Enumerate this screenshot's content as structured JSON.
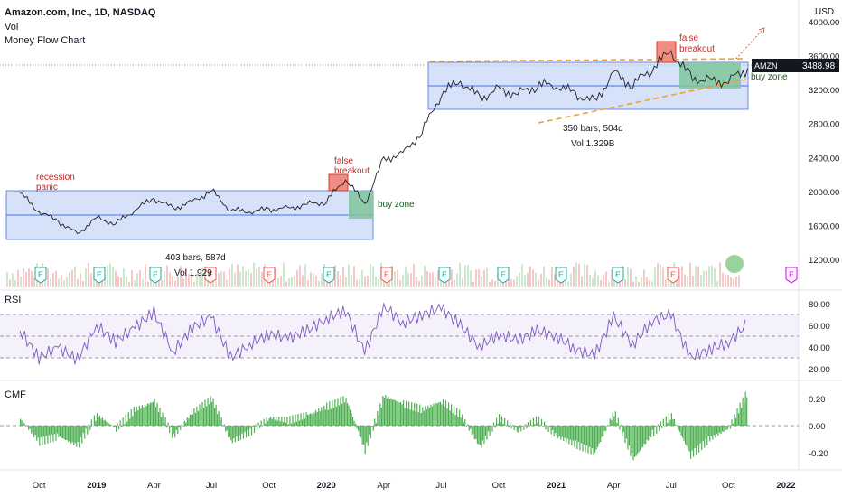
{
  "header": {
    "title": "Amazon.com, Inc., 1D, NASDAQ",
    "vol_label": "Vol",
    "indicator_label": "Money Flow Chart"
  },
  "currency": "USD",
  "ticker": {
    "symbol": "AMZN",
    "last_price": "3488.98"
  },
  "colors": {
    "price_line": "#1f1f1f",
    "range_fill": "#b5c8f5",
    "range_line": "#4a6ee0",
    "buy_fill": "#7fc59a",
    "breakout_fill": "#f28b82",
    "breakout_line": "#d23f31",
    "trend_dash": "#f0a030",
    "rsi_line": "#7e57c2",
    "cmf_bar": "#4caf50",
    "annotation_red": "#c62828",
    "annotation_green": "#1b5e20",
    "earnings_green": "#26a69a",
    "earnings_red": "#ef5350",
    "earnings_pink": "#d500f9"
  },
  "annotations": {
    "recession_panic": [
      "recession",
      "panic"
    ],
    "false_breakout": [
      "false",
      "breakout"
    ],
    "buy_zone": "buy zone",
    "range1_bars": "403 bars, 587d",
    "range1_vol": "Vol 1.929",
    "range2_bars": "350 bars, 504d",
    "range2_vol": "Vol 1.329B",
    "earnings_marker": "E"
  },
  "panes": {
    "rsi_label": "RSI",
    "cmf_label": "CMF"
  },
  "chart_data": [
    {
      "type": "line",
      "pane": "price",
      "x_ticks": [
        "Oct",
        "2019",
        "Apr",
        "Jul",
        "Oct",
        "2020",
        "Apr",
        "Jul",
        "Oct",
        "2021",
        "Apr",
        "Jul",
        "Oct",
        "2022"
      ],
      "y_ticks": [
        "1200.00",
        "1600.00",
        "2000.00",
        "2400.00",
        "2800.00",
        "3200.00",
        "3600.00",
        "4000.00"
      ],
      "ylim": [
        1000,
        4100
      ],
      "x": [
        "2018-09",
        "2018-10",
        "2018-11",
        "2018-12",
        "2019-01",
        "2019-02",
        "2019-03",
        "2019-04",
        "2019-05",
        "2019-06",
        "2019-07",
        "2019-08",
        "2019-09",
        "2019-10",
        "2019-11",
        "2019-12",
        "2020-01",
        "2020-02",
        "2020-03",
        "2020-04",
        "2020-05",
        "2020-06",
        "2020-07",
        "2020-08",
        "2020-09",
        "2020-10",
        "2020-11",
        "2020-12",
        "2021-01",
        "2021-02",
        "2021-03",
        "2021-04",
        "2021-05",
        "2021-06",
        "2021-07",
        "2021-08",
        "2021-09",
        "2021-10",
        "2021-11"
      ],
      "values": [
        1980,
        1760,
        1650,
        1500,
        1690,
        1620,
        1780,
        1920,
        1800,
        1880,
        2010,
        1780,
        1760,
        1790,
        1800,
        1850,
        1880,
        2150,
        1850,
        2380,
        2450,
        2700,
        3150,
        3300,
        3100,
        3200,
        3150,
        3250,
        3250,
        3150,
        3050,
        3400,
        3250,
        3450,
        3650,
        3350,
        3300,
        3300,
        3450
      ]
    },
    {
      "type": "line",
      "pane": "rsi",
      "y_ticks": [
        "20.00",
        "40.00",
        "60.00",
        "80.00"
      ],
      "ylim": [
        15,
        85
      ],
      "bands": [
        30,
        50,
        70
      ],
      "x": [
        "2018-09",
        "2018-10",
        "2018-11",
        "2018-12",
        "2019-01",
        "2019-02",
        "2019-03",
        "2019-04",
        "2019-05",
        "2019-06",
        "2019-07",
        "2019-08",
        "2019-09",
        "2019-10",
        "2019-11",
        "2019-12",
        "2020-01",
        "2020-02",
        "2020-03",
        "2020-04",
        "2020-05",
        "2020-06",
        "2020-07",
        "2020-08",
        "2020-09",
        "2020-10",
        "2020-11",
        "2020-12",
        "2021-01",
        "2021-02",
        "2021-03",
        "2021-04",
        "2021-05",
        "2021-06",
        "2021-07",
        "2021-08",
        "2021-09",
        "2021-10",
        "2021-11"
      ],
      "values": [
        55,
        30,
        40,
        28,
        60,
        45,
        58,
        72,
        35,
        58,
        68,
        30,
        42,
        52,
        48,
        55,
        66,
        74,
        35,
        78,
        62,
        70,
        76,
        60,
        40,
        52,
        46,
        55,
        50,
        38,
        32,
        68,
        42,
        64,
        70,
        30,
        38,
        44,
        62
      ]
    },
    {
      "type": "bar",
      "pane": "cmf",
      "y_ticks": [
        "-0.20",
        "0.00",
        "0.20"
      ],
      "ylim": [
        -0.32,
        0.32
      ],
      "x": [
        "2018-09",
        "2018-10",
        "2018-11",
        "2018-12",
        "2019-01",
        "2019-02",
        "2019-03",
        "2019-04",
        "2019-05",
        "2019-06",
        "2019-07",
        "2019-08",
        "2019-09",
        "2019-10",
        "2019-11",
        "2019-12",
        "2020-01",
        "2020-02",
        "2020-03",
        "2020-04",
        "2020-05",
        "2020-06",
        "2020-07",
        "2020-08",
        "2020-09",
        "2020-10",
        "2020-11",
        "2020-12",
        "2021-01",
        "2021-02",
        "2021-03",
        "2021-04",
        "2021-05",
        "2021-06",
        "2021-07",
        "2021-08",
        "2021-09",
        "2021-10",
        "2021-11"
      ],
      "values": [
        0.05,
        -0.12,
        -0.08,
        -0.15,
        0.08,
        -0.02,
        0.12,
        0.18,
        -0.08,
        0.1,
        0.2,
        -0.12,
        -0.05,
        0.06,
        0.04,
        0.08,
        0.14,
        0.2,
        -0.18,
        0.22,
        0.16,
        0.12,
        0.18,
        0.08,
        -0.16,
        0.06,
        -0.04,
        0.05,
        -0.08,
        -0.14,
        -0.2,
        0.1,
        -0.25,
        -0.06,
        0.08,
        -0.22,
        -0.1,
        -0.02,
        0.26
      ]
    }
  ]
}
